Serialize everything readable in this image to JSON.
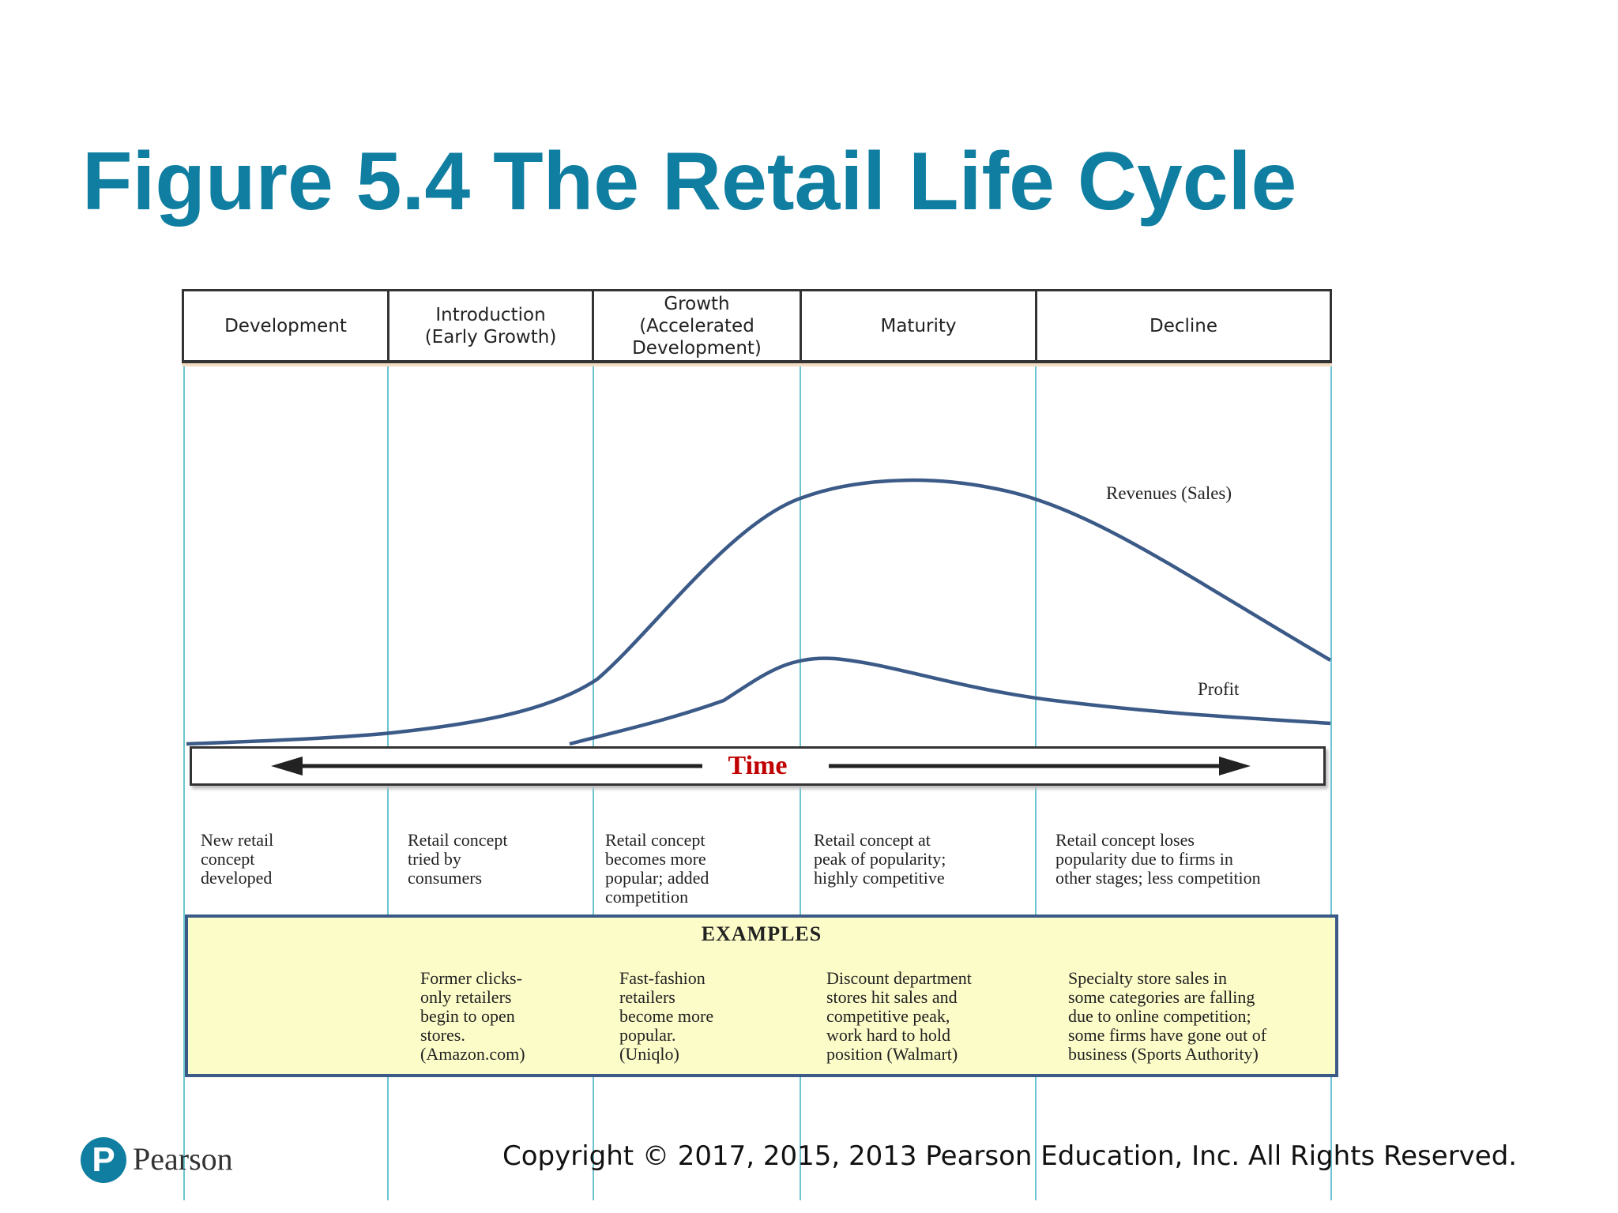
{
  "title": "Figure 5.4 The Retail Life Cycle",
  "stages": [
    {
      "label": "Development"
    },
    {
      "label": "Introduction\n(Early Growth)"
    },
    {
      "label": "Growth\n(Accelerated\nDevelopment)"
    },
    {
      "label": "Maturity"
    },
    {
      "label": "Decline"
    }
  ],
  "curves": {
    "revenues_label": "Revenues (Sales)",
    "profit_label": "Profit",
    "color": "#3b5a87"
  },
  "time_axis": {
    "label": "Time"
  },
  "descriptions": [
    "New retail\nconcept\ndeveloped",
    "Retail concept\ntried by\nconsumers",
    "Retail concept\nbecomes more\npopular; added\ncompetition",
    "Retail concept at\npeak of popularity;\nhighly  competitive",
    "Retail concept loses\npopularity due to firms in\nother stages; less competition"
  ],
  "examples": {
    "title": "EXAMPLES",
    "items": [
      "",
      "Former clicks-\nonly retailers\nbegin  to open\nstores.\n(Amazon.com)",
      "Fast-fashion\nretailers\nbecome more\npopular.\n(Uniqlo)",
      "Discount department\nstores hit sales and\ncompetitive peak,\nwork hard to hold\nposition (Walmart)",
      "Specialty store sales in\nsome categories  are falling\ndue to online  competition;\nsome firms have gone out of\nbusiness (Sports Authority)"
    ]
  },
  "colors": {
    "title": "#0f7ea0",
    "time_label": "#c00000",
    "examples_bg": "#fcfcc9",
    "examples_border": "#3b5a87",
    "stage_lines": "#6cc4d2"
  },
  "footer": {
    "logo_letter": "P",
    "logo_text": "Pearson",
    "copyright": "Copyright © 2017, 2015, 2013 Pearson Education, Inc. All Rights Reserved."
  }
}
